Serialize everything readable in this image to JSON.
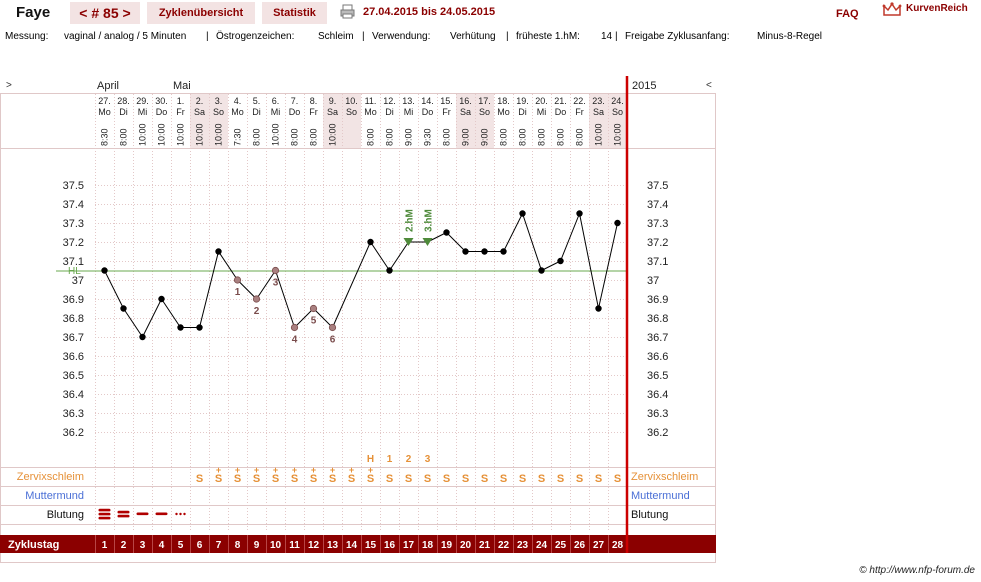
{
  "header": {
    "name": "Faye",
    "cycle_nav": "< # 85 >",
    "tab_overview": "Zyklenübersicht",
    "tab_stats": "Statistik",
    "date_range": "27.04.2015 bis 24.05.2015",
    "faq": "FAQ",
    "logo_text": "KurvenReich"
  },
  "info": {
    "messung_label": "Messung:",
    "messung_value": "vaginal / analog / 5 Minuten",
    "oestrogen_label": "Östrogenzeichen:",
    "oestrogen_value": "Schleim",
    "verwendung_label": "Verwendung:",
    "verwendung_value": "Verhütung",
    "hm_label": "früheste 1.hM:",
    "hm_value": "14",
    "freigabe_label": "Freigabe Zyklusanfang:",
    "freigabe_value": "Minus-8-Regel"
  },
  "chart_data": {
    "type": "line",
    "nav_left": ">",
    "nav_right": "<",
    "year": "2015",
    "months": [
      {
        "label": "April",
        "col": 0
      },
      {
        "label": "Mai",
        "col": 4
      }
    ],
    "days": [
      "27.",
      "28.",
      "29.",
      "30.",
      "1.",
      "2.",
      "3.",
      "4.",
      "5.",
      "6.",
      "7.",
      "8.",
      "9.",
      "10.",
      "11.",
      "12.",
      "13.",
      "14.",
      "15.",
      "16.",
      "17.",
      "18.",
      "19.",
      "20.",
      "21.",
      "22.",
      "23.",
      "24."
    ],
    "weekdays": [
      "Mo",
      "Di",
      "Mi",
      "Do",
      "Fr",
      "Sa",
      "So",
      "Mo",
      "Di",
      "Mi",
      "Do",
      "Fr",
      "Sa",
      "So",
      "Mo",
      "Di",
      "Mi",
      "Do",
      "Fr",
      "Sa",
      "So",
      "Mo",
      "Di",
      "Mi",
      "Do",
      "Fr",
      "Sa",
      "So"
    ],
    "times": [
      "8:30",
      "8:00",
      "10:00",
      "10:00",
      "10:00",
      "10:00",
      "10:00",
      "7:30",
      "8:00",
      "10:00",
      "8:00",
      "8:00",
      "10:00",
      "",
      "8:00",
      "8:00",
      "9:00",
      "9:30",
      "8:00",
      "9:00",
      "9:00",
      "8:00",
      "8:00",
      "8:00",
      "8:00",
      "8:00",
      "10:00",
      "10:00"
    ],
    "weekend_cols": [
      5,
      6,
      12,
      13,
      19,
      20,
      26,
      27
    ],
    "temps": [
      37.05,
      36.85,
      36.7,
      36.9,
      36.75,
      36.75,
      37.15,
      37.0,
      36.9,
      37.05,
      36.75,
      36.85,
      36.75,
      null,
      37.2,
      37.05,
      37.2,
      37.2,
      37.25,
      37.15,
      37.15,
      37.15,
      37.35,
      37.05,
      37.1,
      37.35,
      36.85,
      37.3
    ],
    "low_marks": [
      {
        "col": 7,
        "label": "1"
      },
      {
        "col": 8,
        "label": "2"
      },
      {
        "col": 9,
        "label": "3"
      },
      {
        "col": 10,
        "label": "4"
      },
      {
        "col": 11,
        "label": "5"
      },
      {
        "col": 12,
        "label": "6"
      }
    ],
    "high_marks": [
      {
        "col": 16,
        "label": "2.hM"
      },
      {
        "col": 17,
        "label": "3.hM"
      }
    ],
    "coverline": 37.05,
    "coverline_label": "HL",
    "y_ticks": [
      "37.5",
      "37.4",
      "37.3",
      "37.2",
      "37.1",
      "37",
      "36.9",
      "36.8",
      "36.7",
      "36.6",
      "36.5",
      "36.4",
      "36.3",
      "36.2"
    ],
    "ylim": [
      36.2,
      37.5
    ],
    "peak_labels": [
      {
        "col": 14,
        "label": "H"
      },
      {
        "col": 15,
        "label": "1"
      },
      {
        "col": 16,
        "label": "2"
      },
      {
        "col": 17,
        "label": "3"
      }
    ],
    "mucus": [
      "",
      "",
      "",
      "",
      "",
      "S",
      "S",
      "S",
      "S",
      "S",
      "S",
      "S",
      "S",
      "S",
      "S",
      "S",
      "S",
      "S",
      "S",
      "S",
      "S",
      "S",
      "S",
      "S",
      "S",
      "S",
      "S",
      "S"
    ],
    "mucus_plus_cols": [
      6,
      7,
      8,
      9,
      10,
      11,
      12,
      13,
      14
    ],
    "bleeding": [
      "heavy",
      "medium",
      "light",
      "light",
      "spotting",
      "",
      "",
      "",
      "",
      "",
      "",
      "",
      "",
      "",
      "",
      "",
      "",
      "",
      "",
      "",
      "",
      "",
      "",
      "",
      "",
      "",
      "",
      ""
    ],
    "row_labels": {
      "mucus": "Zervixschleim",
      "cervix": "Muttermund",
      "bleeding": "Blutung",
      "cycle_day": "Zyklustag"
    },
    "cycle_days": [
      "1",
      "2",
      "3",
      "4",
      "5",
      "6",
      "7",
      "8",
      "9",
      "10",
      "11",
      "12",
      "13",
      "14",
      "15",
      "16",
      "17",
      "18",
      "19",
      "20",
      "21",
      "22",
      "23",
      "24",
      "25",
      "26",
      "27",
      "28"
    ]
  },
  "colors": {
    "brand": "#8b0000",
    "line": "#000000",
    "low_marker": "#7a4c4c",
    "high_marker": "#4e8a3a",
    "coverline": "#6aa84f",
    "mucus": "#e69138",
    "cervix": "#4a6fd6",
    "bleeding": "#b00000",
    "weekend": "#f2e4e4",
    "grid": "#e3c8c8",
    "divider": "#cc0000"
  },
  "footer": "© http://www.nfp-forum.de"
}
